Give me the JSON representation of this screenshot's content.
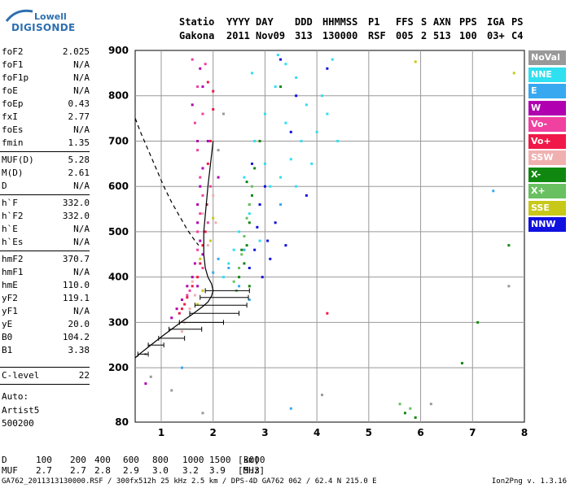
{
  "logo": {
    "line1": "Lowell",
    "line2": "DIGISONDE"
  },
  "header": {
    "row1": [
      "Statio",
      "YYYY",
      "DAY",
      "DDD",
      "HHMMSS",
      "P1",
      "FFS",
      "S",
      "AXN",
      "PPS",
      "IGA",
      "PS"
    ],
    "row2": [
      "Gakona",
      "2011",
      "Nov09",
      "313",
      "130000",
      "RSF",
      "005",
      "2",
      "513",
      "100",
      "03+",
      "C4"
    ]
  },
  "params": [
    {
      "label": "foF2",
      "value": "2.025"
    },
    {
      "label": "foF1",
      "value": "N/A"
    },
    {
      "label": "foF1p",
      "value": "N/A"
    },
    {
      "label": "foE",
      "value": "N/A"
    },
    {
      "label": "foEp",
      "value": "0.43"
    },
    {
      "label": "fxI",
      "value": "2.77"
    },
    {
      "label": "foEs",
      "value": "N/A"
    },
    {
      "label": "fmin",
      "value": "1.35"
    },
    {
      "label": "MUF(D)",
      "value": "5.28"
    },
    {
      "label": "M(D)",
      "value": "2.61"
    },
    {
      "label": "D",
      "value": "N/A"
    },
    {
      "label": "h`F",
      "value": "332.0"
    },
    {
      "label": "h`F2",
      "value": "332.0"
    },
    {
      "label": "h`E",
      "value": "N/A"
    },
    {
      "label": "h`Es",
      "value": "N/A"
    },
    {
      "label": "hmF2",
      "value": "370.7"
    },
    {
      "label": "hmF1",
      "value": "N/A"
    },
    {
      "label": "hmE",
      "value": "110.0"
    },
    {
      "label": "yF2",
      "value": "119.1"
    },
    {
      "label": "yF1",
      "value": "N/A"
    },
    {
      "label": "yE",
      "value": "20.0"
    },
    {
      "label": "B0",
      "value": "104.2"
    },
    {
      "label": "B1",
      "value": "3.38"
    },
    {
      "label": "C-level",
      "value": "22"
    }
  ],
  "autoscale": {
    "label": "Auto:",
    "artist": "Artist5",
    "version": "500200"
  },
  "legend": [
    {
      "name": "NoVal",
      "color": "#999999"
    },
    {
      "name": "NNE",
      "color": "#2ee0f0"
    },
    {
      "name": "E",
      "color": "#38a8f0"
    },
    {
      "name": "W",
      "color": "#b000b0"
    },
    {
      "name": "Vo-",
      "color": "#f040a0"
    },
    {
      "name": "Vo+",
      "color": "#f01848"
    },
    {
      "name": "SSW",
      "color": "#f0b0b0"
    },
    {
      "name": "X-",
      "color": "#108810"
    },
    {
      "name": "X+",
      "color": "#68c060"
    },
    {
      "name": "SSE",
      "color": "#c8c818"
    },
    {
      "name": "NNW",
      "color": "#1010e0"
    }
  ],
  "muf_table": {
    "d_label": "D",
    "d_values": [
      "100",
      "200",
      "400",
      "600",
      "800",
      "1000",
      "1500",
      "3000"
    ],
    "d_unit": "[km]",
    "muf_label": "MUF",
    "muf_values": [
      "2.7",
      "2.7",
      "2.8",
      "2.9",
      "3.0",
      "3.2",
      "3.9",
      "5.3"
    ],
    "muf_unit": "[MHz]"
  },
  "footer": {
    "left": "GA762_2011313130000.RSF / 300fx512h 25 kHz 2.5 km / DPS-4D GA762 062 / 62.4 N 215.0 E",
    "right": "Ion2Png v. 1.3.16"
  },
  "chart_data": {
    "type": "scatter",
    "xlim": [
      0.5,
      8
    ],
    "ylim": [
      80,
      900
    ],
    "x_ticks": [
      1,
      2,
      3,
      4,
      5,
      6,
      7,
      8
    ],
    "y_ticks": [
      80,
      200,
      300,
      400,
      500,
      600,
      700,
      800,
      900
    ],
    "grid": true,
    "legend_position": "right",
    "profile_curve": [
      [
        0.5,
        222
      ],
      [
        0.6,
        232
      ],
      [
        0.8,
        250
      ],
      [
        1.0,
        268
      ],
      [
        1.2,
        285
      ],
      [
        1.4,
        302
      ],
      [
        1.6,
        318
      ],
      [
        1.8,
        335
      ],
      [
        1.9,
        345
      ],
      [
        1.97,
        358
      ],
      [
        2.0,
        370
      ],
      [
        1.97,
        385
      ],
      [
        1.9,
        400
      ],
      [
        1.85,
        420
      ],
      [
        1.82,
        450
      ],
      [
        1.82,
        500
      ],
      [
        1.86,
        550
      ],
      [
        1.9,
        600
      ],
      [
        1.95,
        650
      ],
      [
        2.0,
        700
      ]
    ],
    "dashed_curve": [
      [
        0.5,
        750
      ],
      [
        0.6,
        720
      ],
      [
        0.75,
        680
      ],
      [
        0.9,
        640
      ],
      [
        1.05,
        600
      ],
      [
        1.2,
        565
      ],
      [
        1.35,
        535
      ],
      [
        1.5,
        505
      ],
      [
        1.62,
        485
      ],
      [
        1.72,
        470
      ]
    ],
    "error_bars": [
      {
        "y": 230,
        "x1": 0.55,
        "x2": 0.75
      },
      {
        "y": 250,
        "x1": 0.75,
        "x2": 1.05
      },
      {
        "y": 265,
        "x1": 0.95,
        "x2": 1.45
      },
      {
        "y": 285,
        "x1": 1.15,
        "x2": 1.78
      },
      {
        "y": 300,
        "x1": 1.35,
        "x2": 2.2
      },
      {
        "y": 320,
        "x1": 1.55,
        "x2": 2.5
      },
      {
        "y": 338,
        "x1": 1.65,
        "x2": 2.65
      },
      {
        "y": 355,
        "x1": 1.75,
        "x2": 2.68
      },
      {
        "y": 370,
        "x1": 1.85,
        "x2": 2.7
      }
    ],
    "clusters": [
      {
        "name": "NNE",
        "points": [
          [
            2.6,
            620
          ],
          [
            2.8,
            700
          ],
          [
            3.0,
            760
          ],
          [
            3.2,
            820
          ],
          [
            3.4,
            870
          ],
          [
            3.6,
            840
          ],
          [
            3.8,
            780
          ],
          [
            4.0,
            720
          ],
          [
            3.5,
            660
          ],
          [
            3.3,
            620
          ],
          [
            3.1,
            600
          ],
          [
            2.9,
            560
          ],
          [
            3.7,
            700
          ],
          [
            4.2,
            760
          ],
          [
            4.3,
            880
          ],
          [
            2.4,
            460
          ],
          [
            2.5,
            500
          ],
          [
            2.3,
            430
          ],
          [
            3.0,
            650
          ],
          [
            3.4,
            740
          ],
          [
            2.2,
            400
          ],
          [
            3.9,
            650
          ],
          [
            3.6,
            600
          ],
          [
            2.7,
            540
          ],
          [
            4.1,
            800
          ],
          [
            2.75,
            850
          ],
          [
            4.4,
            700
          ],
          [
            3.25,
            890
          ],
          [
            2.9,
            480
          ]
        ]
      },
      {
        "name": "E",
        "points": [
          [
            2.5,
            380
          ],
          [
            2.3,
            420
          ],
          [
            2.1,
            440
          ],
          [
            2.6,
            460
          ],
          [
            7.4,
            590
          ],
          [
            3.5,
            110
          ],
          [
            1.4,
            200
          ],
          [
            2.7,
            350
          ],
          [
            2.0,
            410
          ],
          [
            3.3,
            560
          ]
        ]
      },
      {
        "name": "W",
        "points": [
          [
            1.6,
            780
          ],
          [
            1.7,
            700
          ],
          [
            1.8,
            640
          ],
          [
            1.75,
            600
          ],
          [
            1.7,
            560
          ],
          [
            1.7,
            520
          ],
          [
            1.75,
            480
          ],
          [
            1.8,
            450
          ],
          [
            1.65,
            430
          ],
          [
            1.6,
            400
          ],
          [
            1.5,
            380
          ],
          [
            1.4,
            350
          ],
          [
            1.3,
            330
          ],
          [
            1.2,
            310
          ],
          [
            1.8,
            820
          ],
          [
            1.75,
            860
          ],
          [
            0.7,
            165
          ],
          [
            1.7,
            380
          ],
          [
            2.1,
            620
          ],
          [
            1.9,
            700
          ]
        ]
      },
      {
        "name": "Vo-",
        "points": [
          [
            1.6,
            880
          ],
          [
            1.7,
            820
          ],
          [
            1.65,
            740
          ],
          [
            1.7,
            680
          ],
          [
            1.75,
            620
          ],
          [
            1.8,
            580
          ],
          [
            1.75,
            540
          ],
          [
            1.7,
            500
          ],
          [
            1.7,
            460
          ],
          [
            1.8,
            420
          ],
          [
            1.55,
            370
          ],
          [
            1.5,
            360
          ],
          [
            1.9,
            520
          ],
          [
            1.95,
            600
          ],
          [
            1.8,
            760
          ],
          [
            1.85,
            870
          ]
        ]
      },
      {
        "name": "Vo+",
        "points": [
          [
            1.9,
            830
          ],
          [
            2.0,
            770
          ],
          [
            1.95,
            700
          ],
          [
            1.9,
            650
          ],
          [
            1.88,
            560
          ],
          [
            1.85,
            500
          ],
          [
            1.8,
            470
          ],
          [
            1.75,
            430
          ],
          [
            1.7,
            400
          ],
          [
            1.6,
            380
          ],
          [
            1.5,
            355
          ],
          [
            1.45,
            340
          ],
          [
            1.4,
            330
          ],
          [
            1.35,
            320
          ],
          [
            4.2,
            320
          ],
          [
            2.0,
            810
          ]
        ]
      },
      {
        "name": "SSW",
        "points": [
          [
            1.4,
            280
          ],
          [
            1.45,
            300
          ],
          [
            1.55,
            330
          ],
          [
            1.65,
            360
          ],
          [
            1.6,
            390
          ],
          [
            1.9,
            470
          ],
          [
            2.05,
            520
          ],
          [
            1.8,
            540
          ],
          [
            2.0,
            580
          ]
        ]
      },
      {
        "name": "X-",
        "points": [
          [
            2.7,
            380
          ],
          [
            2.5,
            400
          ],
          [
            2.6,
            430
          ],
          [
            2.65,
            470
          ],
          [
            2.7,
            520
          ],
          [
            2.75,
            580
          ],
          [
            2.8,
            640
          ],
          [
            2.7,
            560
          ],
          [
            5.7,
            100
          ],
          [
            5.9,
            90
          ],
          [
            7.7,
            470
          ],
          [
            7.1,
            300
          ],
          [
            6.8,
            210
          ],
          [
            2.55,
            460
          ],
          [
            2.65,
            610
          ],
          [
            2.9,
            700
          ],
          [
            3.3,
            820
          ]
        ]
      },
      {
        "name": "X+",
        "points": [
          [
            2.4,
            390
          ],
          [
            2.5,
            420
          ],
          [
            2.55,
            450
          ],
          [
            2.6,
            490
          ],
          [
            2.65,
            530
          ],
          [
            2.7,
            560
          ],
          [
            5.6,
            120
          ],
          [
            5.8,
            110
          ],
          [
            2.45,
            370
          ],
          [
            2.75,
            600
          ]
        ]
      },
      {
        "name": "SSE",
        "points": [
          [
            1.7,
            340
          ],
          [
            1.8,
            370
          ],
          [
            2.0,
            530
          ],
          [
            1.95,
            480
          ],
          [
            1.75,
            440
          ],
          [
            7.8,
            850
          ],
          [
            5.9,
            875
          ]
        ]
      },
      {
        "name": "NNW",
        "points": [
          [
            2.7,
            420
          ],
          [
            2.8,
            460
          ],
          [
            2.85,
            510
          ],
          [
            2.9,
            560
          ],
          [
            3.0,
            600
          ],
          [
            3.2,
            520
          ],
          [
            3.4,
            470
          ],
          [
            3.1,
            440
          ],
          [
            2.95,
            400
          ],
          [
            3.5,
            720
          ],
          [
            3.6,
            800
          ],
          [
            4.2,
            860
          ],
          [
            3.8,
            580
          ],
          [
            3.3,
            880
          ],
          [
            3.05,
            480
          ],
          [
            2.75,
            650
          ]
        ]
      },
      {
        "name": "NoVal",
        "points": [
          [
            0.7,
            230
          ],
          [
            0.8,
            180
          ],
          [
            1.2,
            150
          ],
          [
            1.8,
            100
          ],
          [
            2.2,
            760
          ],
          [
            2.1,
            680
          ],
          [
            4.1,
            140
          ],
          [
            6.2,
            120
          ],
          [
            7.7,
            380
          ]
        ]
      }
    ],
    "title": "",
    "xlabel": "",
    "ylabel": ""
  }
}
